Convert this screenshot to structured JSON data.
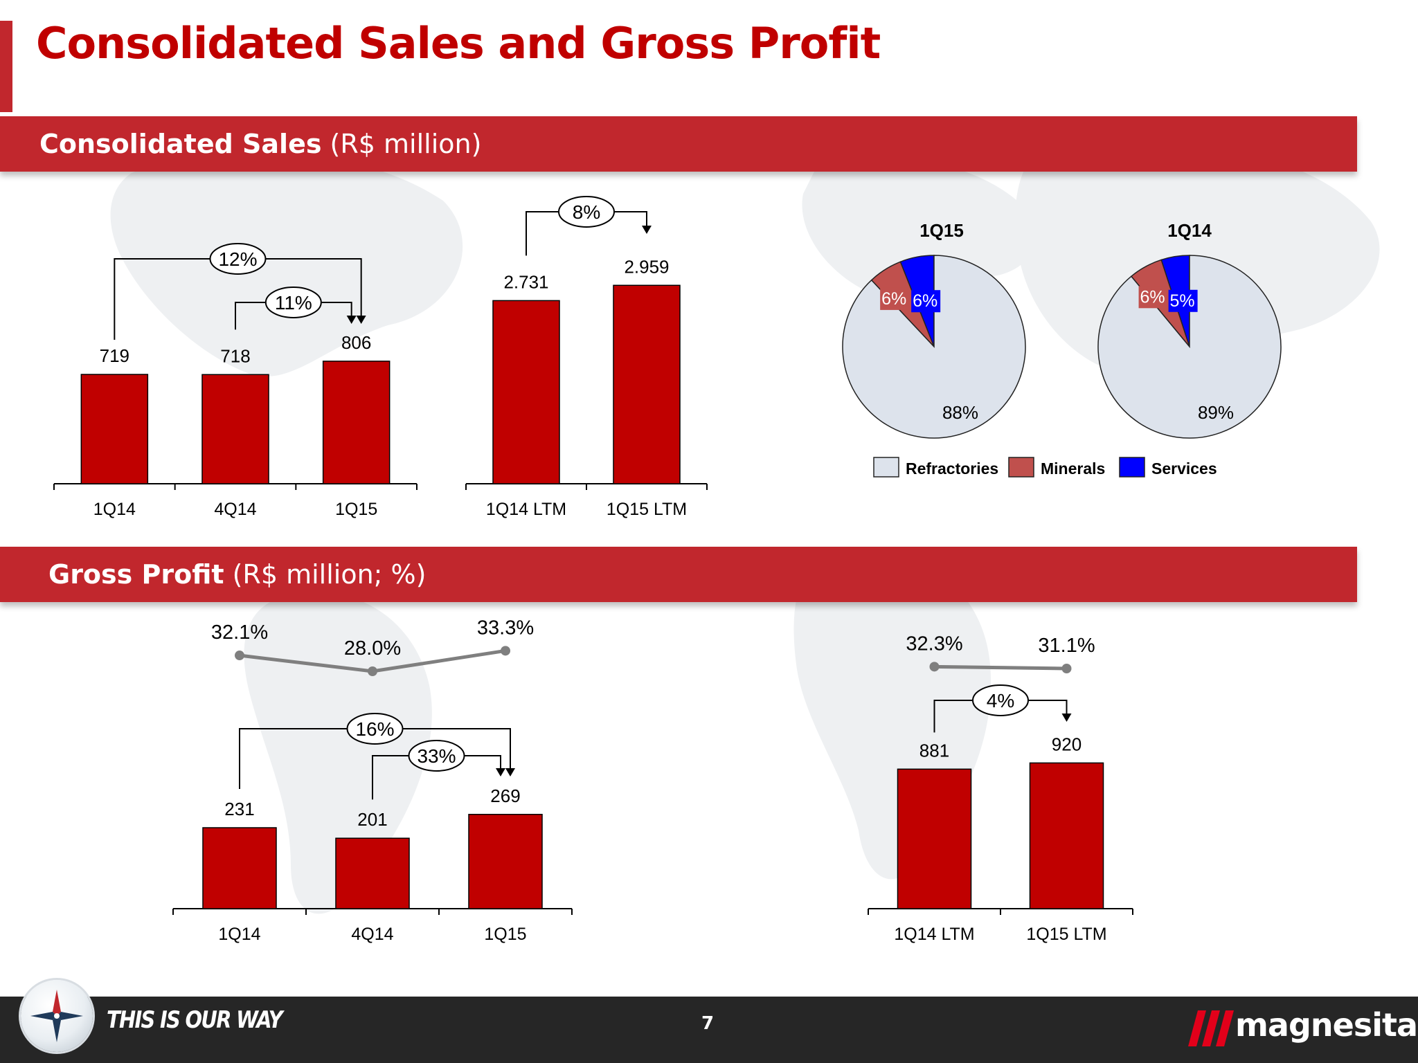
{
  "slide": {
    "title": "Consolidated Sales and Gross Profit",
    "page_number": "7",
    "tagline": "THIS IS OUR WAY",
    "brand": "magnesita"
  },
  "sections": {
    "sales": {
      "bold": "Consolidated Sales",
      "rest": " (R$ million)"
    },
    "profit": {
      "bold": "Gross Profit",
      "rest": " (R$ million; %)"
    }
  },
  "colors": {
    "bar": "#c00000",
    "accent": "#c1272d",
    "refractories": "#dde3ec",
    "minerals": "#c0504d",
    "services": "#0000ff",
    "line": "#7f7f7f"
  },
  "chart_data": [
    {
      "id": "sales_quarterly",
      "type": "bar",
      "categories": [
        "1Q14",
        "4Q14",
        "1Q15"
      ],
      "values": [
        719,
        718,
        806
      ],
      "value_labels": [
        "719",
        "718",
        "806"
      ],
      "growth": [
        {
          "from": "1Q14",
          "to": "1Q15",
          "label": "12%"
        },
        {
          "from": "4Q14",
          "to": "1Q15",
          "label": "11%"
        }
      ]
    },
    {
      "id": "sales_ltm",
      "type": "bar",
      "categories": [
        "1Q14 LTM",
        "1Q15 LTM"
      ],
      "values": [
        2731,
        2959
      ],
      "value_labels": [
        "2.731",
        "2.959"
      ],
      "growth": [
        {
          "from": "1Q14 LTM",
          "to": "1Q15 LTM",
          "label": "8%"
        }
      ]
    },
    {
      "id": "sales_mix",
      "type": "pie",
      "legend": [
        "Refractories",
        "Minerals",
        "Services"
      ],
      "legend_position": "bottom",
      "pies": [
        {
          "title": "1Q15",
          "values": [
            88,
            6,
            6
          ],
          "labels": [
            "88%",
            "6%",
            "6%"
          ]
        },
        {
          "title": "1Q14",
          "values": [
            89,
            6,
            5
          ],
          "labels": [
            "89%",
            "6%",
            "5%"
          ]
        }
      ]
    },
    {
      "id": "gross_profit_quarterly",
      "type": "bar",
      "categories": [
        "1Q14",
        "4Q14",
        "1Q15"
      ],
      "values": [
        231,
        201,
        269
      ],
      "value_labels": [
        "231",
        "201",
        "269"
      ],
      "margin": [
        32.1,
        28.0,
        33.3
      ],
      "margin_labels": [
        "32.1%",
        "28.0%",
        "33.3%"
      ],
      "growth": [
        {
          "from": "1Q14",
          "to": "1Q15",
          "label": "16%"
        },
        {
          "from": "4Q14",
          "to": "1Q15",
          "label": "33%"
        }
      ]
    },
    {
      "id": "gross_profit_ltm",
      "type": "bar",
      "categories": [
        "1Q14 LTM",
        "1Q15 LTM"
      ],
      "values": [
        881,
        920
      ],
      "value_labels": [
        "881",
        "920"
      ],
      "margin": [
        32.3,
        31.1
      ],
      "margin_labels": [
        "32.3%",
        "31.1%"
      ],
      "growth": [
        {
          "from": "1Q14 LTM",
          "to": "1Q15 LTM",
          "label": "4%"
        }
      ]
    }
  ]
}
